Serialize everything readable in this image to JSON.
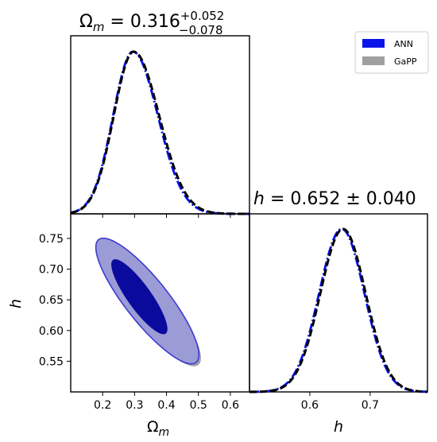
{
  "chart_data": [
    {
      "type": "line",
      "panel": "1D marginal posterior of Omega_m",
      "title": {
        "prefix": "Ω",
        "sub": "m",
        "eq": " = 0.316",
        "sup": "+0.052",
        "low": "−0.078"
      },
      "xlim": [
        0.1,
        0.66
      ],
      "ylim": [
        0,
        1.0
      ],
      "series": [
        {
          "name": "ANN",
          "color": "#0b14e8",
          "dash": "dashdot",
          "mean": 0.295,
          "sd_left": 0.062,
          "sd_right": 0.078
        },
        {
          "name": "GaPP",
          "color": "#000000",
          "dash": "dashed",
          "mean": 0.297,
          "sd_left": 0.062,
          "sd_right": 0.08
        }
      ]
    },
    {
      "type": "contour",
      "panel": "2D joint posterior Omega_m vs h",
      "xlabel": {
        "main": "Ω",
        "sub": "m"
      },
      "ylabel": "h",
      "xlim": [
        0.1,
        0.66
      ],
      "ylim": [
        0.5,
        0.79
      ],
      "x_ticks": [
        {
          "value": 0.2,
          "label": "0.2"
        },
        {
          "value": 0.3,
          "label": "0.3"
        },
        {
          "value": 0.4,
          "label": "0.4"
        },
        {
          "value": 0.5,
          "label": "0.5"
        },
        {
          "value": 0.6,
          "label": "0.6"
        }
      ],
      "y_ticks": [
        {
          "value": 0.55,
          "label": "0.55"
        },
        {
          "value": 0.6,
          "label": "0.60"
        },
        {
          "value": 0.65,
          "label": "0.65"
        },
        {
          "value": 0.7,
          "label": "0.70"
        },
        {
          "value": 0.75,
          "label": "0.75"
        }
      ],
      "contours": [
        {
          "series": "GaPP",
          "level": "95%",
          "color": "#a0a0a8",
          "center": [
            0.345,
            0.644
          ],
          "points": [
            [
              0.19,
              0.75
            ],
            [
              0.21,
              0.754
            ],
            [
              0.5,
              0.55
            ],
            [
              0.52,
              0.546
            ]
          ]
        },
        {
          "series": "ANN",
          "level": "95%",
          "color": "#9b9bd6",
          "edge": "#3b3bd0",
          "center": [
            0.34,
            0.648
          ],
          "points": [
            [
              0.185,
              0.752
            ],
            [
              0.2,
              0.754
            ],
            [
              0.49,
              0.552
            ],
            [
              0.495,
              0.556
            ]
          ]
        },
        {
          "series": "ANN",
          "level": "68%",
          "color": "#0a0a9c",
          "center": [
            0.315,
            0.655
          ],
          "points": [
            [
              0.235,
              0.718
            ],
            [
              0.245,
              0.72
            ],
            [
              0.4,
              0.598
            ],
            [
              0.405,
              0.604
            ]
          ]
        }
      ]
    },
    {
      "type": "line",
      "panel": "1D marginal posterior of h",
      "title": {
        "prefix": "h",
        "eq": " = 0.652 ± 0.040"
      },
      "xlabel": "h",
      "xlim": [
        0.5,
        0.795
      ],
      "ylim": [
        0,
        1.0
      ],
      "x_ticks": [
        {
          "value": 0.6,
          "label": "0.6"
        },
        {
          "value": 0.7,
          "label": "0.7"
        }
      ],
      "series": [
        {
          "name": "ANN",
          "color": "#0b14e8",
          "dash": "dashdot",
          "mean": 0.653,
          "sd": 0.0375
        },
        {
          "name": "GaPP",
          "color": "#000000",
          "dash": "dashed",
          "mean": 0.655,
          "sd": 0.0375
        }
      ]
    }
  ],
  "legend": {
    "position": "top-right",
    "entries": [
      {
        "label": "ANN",
        "color": "#0b14e8"
      },
      {
        "label": "GaPP",
        "color": "#a0a0a0"
      }
    ]
  }
}
